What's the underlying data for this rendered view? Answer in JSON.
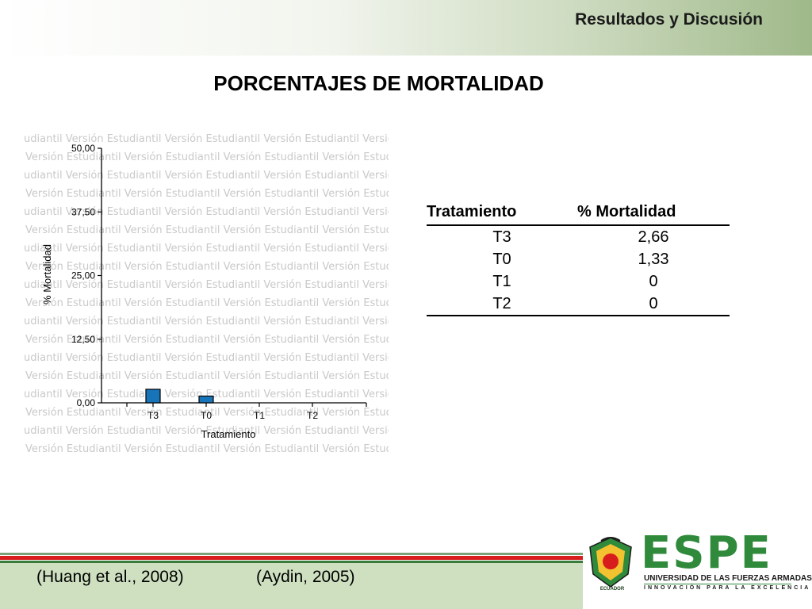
{
  "header": {
    "section_title": "Resultados y Discusión",
    "slide_title": "PORCENTAJES DE MORTALIDAD"
  },
  "watermark": {
    "phrase": "Versión Estudiantil"
  },
  "chart_data": {
    "type": "bar",
    "categories": [
      "T3",
      "T0",
      "T1",
      "T2"
    ],
    "values": [
      2.66,
      1.33,
      0,
      0
    ],
    "xlabel": "Tratamiento",
    "ylabel": "% Mortalidad",
    "ylim": [
      0,
      50
    ],
    "yticks": [
      0,
      12.5,
      25,
      37.5,
      50
    ],
    "ytick_labels": [
      "0,00",
      "12,50",
      "25,00",
      "37,50",
      "50,00"
    ],
    "bar_color": "#1874b8",
    "grid": false
  },
  "table": {
    "headers": [
      "Tratamiento",
      "% Mortalidad"
    ],
    "rows": [
      [
        "T3",
        "2,66"
      ],
      [
        "T0",
        "1,33"
      ],
      [
        "T1",
        "0"
      ],
      [
        "T2",
        "0"
      ]
    ]
  },
  "footer": {
    "ref1": "(Huang et al., 2008)",
    "ref2": "(Aydin, 2005)"
  },
  "logo": {
    "wordmark": "ESPE",
    "university": "UNIVERSIDAD DE LAS FUERZAS ARMADAS",
    "motto": "INNOVACIÓN PARA LA EXCELENCIA",
    "crest_caption": "ECUADOR",
    "green": "#2f8a3b",
    "red": "#d81d1d"
  }
}
